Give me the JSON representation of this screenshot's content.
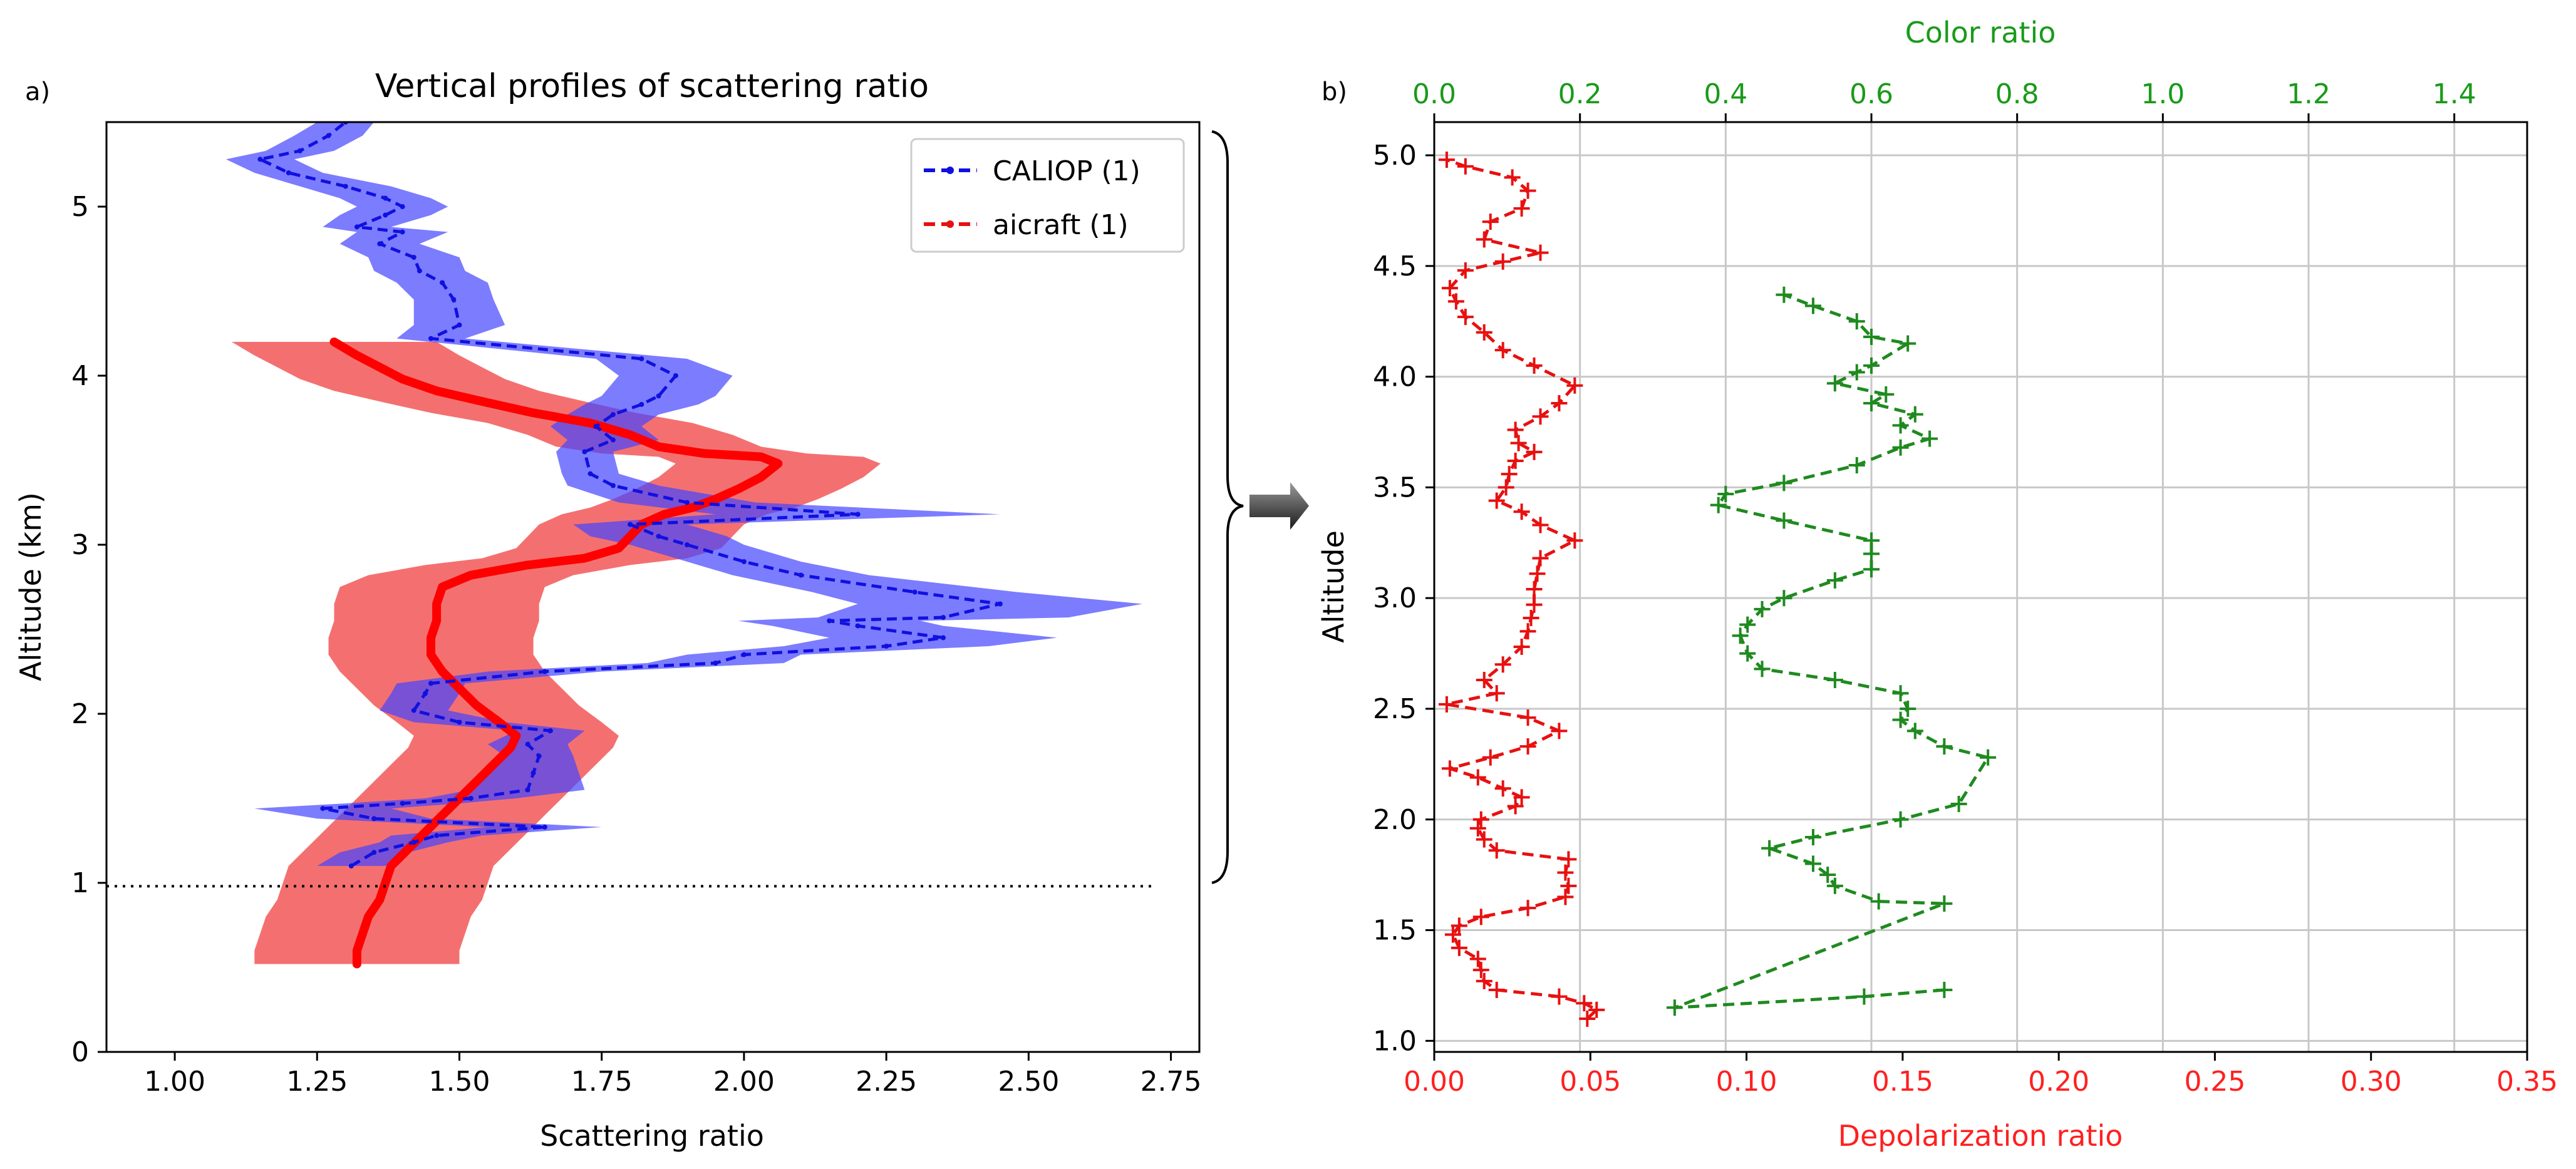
{
  "panel_labels": {
    "a": "a)",
    "b": "b)"
  },
  "arrow": "connector arrow from panel a to panel b",
  "colors": {
    "blue": "#1010e0",
    "red": "#e81010",
    "green": "#1f8a1f",
    "red_axis": "#ff2020",
    "green_axis": "#1a9a1a",
    "blue_band": "#4444ff",
    "red_band": "#f25050",
    "grid": "#c8c8c8"
  },
  "chart_data": [
    {
      "type": "line",
      "title": "Vertical profiles of scattering ratio",
      "xlabel": "Scattering ratio",
      "ylabel": "Altitude (km)",
      "xlim": [
        0.88,
        2.8
      ],
      "ylim": [
        0,
        5.5
      ],
      "xticks": [
        "1.00",
        "1.25",
        "1.50",
        "1.75",
        "2.00",
        "2.25",
        "2.50",
        "2.75"
      ],
      "yticks": [
        "0",
        "1",
        "2",
        "3",
        "4",
        "5"
      ],
      "xtick_values": [
        1.0,
        1.25,
        1.5,
        1.75,
        2.0,
        2.25,
        2.5,
        2.75
      ],
      "ytick_values": [
        0,
        1,
        2,
        3,
        4,
        5
      ],
      "legend": {
        "position": "top-right",
        "entries": [
          "CALIOP (1)",
          "aicraft (1)"
        ]
      },
      "hline": {
        "y": 0.98,
        "x_range": [
          0.88,
          2.72
        ],
        "style": "dotted"
      },
      "series": [
        {
          "name": "CALIOP (1)",
          "style": "dashed",
          "points": [
            [
              1.31,
              1.1
            ],
            [
              1.35,
              1.18
            ],
            [
              1.42,
              1.24
            ],
            [
              1.46,
              1.28
            ],
            [
              1.65,
              1.33
            ],
            [
              1.35,
              1.38
            ],
            [
              1.26,
              1.44
            ],
            [
              1.4,
              1.47
            ],
            [
              1.52,
              1.5
            ],
            [
              1.62,
              1.55
            ],
            [
              1.63,
              1.65
            ],
            [
              1.64,
              1.75
            ],
            [
              1.62,
              1.82
            ],
            [
              1.66,
              1.9
            ],
            [
              1.5,
              1.95
            ],
            [
              1.42,
              2.02
            ],
            [
              1.44,
              2.12
            ],
            [
              1.45,
              2.18
            ],
            [
              1.65,
              2.25
            ],
            [
              1.95,
              2.3
            ],
            [
              2.0,
              2.35
            ],
            [
              2.25,
              2.4
            ],
            [
              2.35,
              2.45
            ],
            [
              2.2,
              2.52
            ],
            [
              2.15,
              2.55
            ],
            [
              2.35,
              2.57
            ],
            [
              2.45,
              2.65
            ],
            [
              2.3,
              2.72
            ],
            [
              2.1,
              2.82
            ],
            [
              2.0,
              2.9
            ],
            [
              1.9,
              3.0
            ],
            [
              1.85,
              3.05
            ],
            [
              1.8,
              3.12
            ],
            [
              2.2,
              3.18
            ],
            [
              1.9,
              3.25
            ],
            [
              1.77,
              3.35
            ],
            [
              1.73,
              3.42
            ],
            [
              1.72,
              3.55
            ],
            [
              1.77,
              3.62
            ],
            [
              1.74,
              3.7
            ],
            [
              1.77,
              3.77
            ],
            [
              1.82,
              3.83
            ],
            [
              1.85,
              3.88
            ],
            [
              1.88,
              4.0
            ],
            [
              1.82,
              4.1
            ],
            [
              1.45,
              4.22
            ],
            [
              1.5,
              4.3
            ],
            [
              1.49,
              4.45
            ],
            [
              1.47,
              4.55
            ],
            [
              1.43,
              4.62
            ],
            [
              1.42,
              4.7
            ],
            [
              1.36,
              4.78
            ],
            [
              1.4,
              4.85
            ],
            [
              1.32,
              4.88
            ],
            [
              1.37,
              4.95
            ],
            [
              1.4,
              5.0
            ],
            [
              1.37,
              5.05
            ],
            [
              1.3,
              5.12
            ],
            [
              1.2,
              5.2
            ],
            [
              1.15,
              5.28
            ],
            [
              1.22,
              5.33
            ],
            [
              1.27,
              5.42
            ],
            [
              1.3,
              5.5
            ]
          ],
          "band_halfwidth": [
            0.06,
            0.06,
            0.06,
            0.08,
            0.1,
            0.1,
            0.12,
            0.1,
            0.08,
            0.1,
            0.08,
            0.06,
            0.07,
            0.06,
            0.08,
            0.06,
            0.06,
            0.06,
            0.1,
            0.12,
            0.1,
            0.18,
            0.2,
            0.15,
            0.16,
            0.22,
            0.25,
            0.18,
            0.12,
            0.1,
            0.1,
            0.12,
            0.1,
            0.25,
            0.12,
            0.08,
            0.05,
            0.05,
            0.08,
            0.08,
            0.08,
            0.1,
            0.1,
            0.1,
            0.08,
            0.06,
            0.08,
            0.07,
            0.08,
            0.08,
            0.08,
            0.07,
            0.08,
            0.06,
            0.08,
            0.08,
            0.08,
            0.08,
            0.06,
            0.06,
            0.06,
            0.06,
            0.05
          ]
        },
        {
          "name": "aicraft (1)",
          "style": "solid-thick",
          "points": [
            [
              1.32,
              0.52
            ],
            [
              1.32,
              0.6
            ],
            [
              1.33,
              0.7
            ],
            [
              1.34,
              0.8
            ],
            [
              1.36,
              0.9
            ],
            [
              1.37,
              1.0
            ],
            [
              1.38,
              1.1
            ],
            [
              1.41,
              1.2
            ],
            [
              1.44,
              1.3
            ],
            [
              1.47,
              1.4
            ],
            [
              1.5,
              1.5
            ],
            [
              1.53,
              1.6
            ],
            [
              1.56,
              1.7
            ],
            [
              1.59,
              1.8
            ],
            [
              1.6,
              1.87
            ],
            [
              1.57,
              1.95
            ],
            [
              1.53,
              2.05
            ],
            [
              1.5,
              2.15
            ],
            [
              1.47,
              2.25
            ],
            [
              1.45,
              2.35
            ],
            [
              1.45,
              2.45
            ],
            [
              1.46,
              2.55
            ],
            [
              1.46,
              2.65
            ],
            [
              1.47,
              2.75
            ],
            [
              1.52,
              2.82
            ],
            [
              1.62,
              2.88
            ],
            [
              1.72,
              2.92
            ],
            [
              1.78,
              2.98
            ],
            [
              1.8,
              3.05
            ],
            [
              1.82,
              3.12
            ],
            [
              1.86,
              3.18
            ],
            [
              1.91,
              3.22
            ],
            [
              1.95,
              3.27
            ],
            [
              1.99,
              3.33
            ],
            [
              2.03,
              3.4
            ],
            [
              2.06,
              3.48
            ],
            [
              2.03,
              3.52
            ],
            [
              1.93,
              3.54
            ],
            [
              1.85,
              3.58
            ],
            [
              1.8,
              3.65
            ],
            [
              1.73,
              3.72
            ],
            [
              1.63,
              3.78
            ],
            [
              1.55,
              3.84
            ],
            [
              1.46,
              3.91
            ],
            [
              1.4,
              3.98
            ],
            [
              1.36,
              4.05
            ],
            [
              1.32,
              4.12
            ],
            [
              1.28,
              4.2
            ]
          ],
          "band_halfwidth": 0.18
        }
      ]
    },
    {
      "type": "line",
      "xlabel": "Depolarization ratio",
      "x2label": "Color ratio",
      "ylabel": "Altitude",
      "xlim": [
        0.0,
        0.35
      ],
      "x2lim": [
        0.0,
        1.5
      ],
      "ylim": [
        0.95,
        5.15
      ],
      "xticks": [
        "0.00",
        "0.05",
        "0.10",
        "0.15",
        "0.20",
        "0.25",
        "0.30",
        "0.35"
      ],
      "xtick_values": [
        0,
        0.05,
        0.1,
        0.15,
        0.2,
        0.25,
        0.3,
        0.35
      ],
      "x2ticks": [
        "0.0",
        "0.2",
        "0.4",
        "0.6",
        "0.8",
        "1.0",
        "1.2",
        "1.4"
      ],
      "x2tick_values": [
        0,
        0.2,
        0.4,
        0.6,
        0.8,
        1.0,
        1.2,
        1.4
      ],
      "yticks": [
        "1.0",
        "1.5",
        "2.0",
        "2.5",
        "3.0",
        "3.5",
        "4.0",
        "4.5",
        "5.0"
      ],
      "ytick_values": [
        1.0,
        1.5,
        2.0,
        2.5,
        3.0,
        3.5,
        4.0,
        4.5,
        5.0
      ],
      "grid": true,
      "series": [
        {
          "name": "Depolarization ratio",
          "axis": "bottom",
          "style": "dashed-plus",
          "points": [
            [
              0.049,
              1.1
            ],
            [
              0.052,
              1.14
            ],
            [
              0.048,
              1.17
            ],
            [
              0.04,
              1.2
            ],
            [
              0.02,
              1.23
            ],
            [
              0.016,
              1.27
            ],
            [
              0.015,
              1.32
            ],
            [
              0.014,
              1.37
            ],
            [
              0.008,
              1.42
            ],
            [
              0.006,
              1.48
            ],
            [
              0.008,
              1.52
            ],
            [
              0.015,
              1.56
            ],
            [
              0.03,
              1.6
            ],
            [
              0.042,
              1.65
            ],
            [
              0.043,
              1.7
            ],
            [
              0.042,
              1.76
            ],
            [
              0.043,
              1.82
            ],
            [
              0.02,
              1.86
            ],
            [
              0.016,
              1.91
            ],
            [
              0.014,
              1.96
            ],
            [
              0.015,
              2.0
            ],
            [
              0.026,
              2.06
            ],
            [
              0.028,
              2.1
            ],
            [
              0.022,
              2.14
            ],
            [
              0.014,
              2.19
            ],
            [
              0.005,
              2.23
            ],
            [
              0.018,
              2.28
            ],
            [
              0.03,
              2.33
            ],
            [
              0.04,
              2.4
            ],
            [
              0.03,
              2.46
            ],
            [
              0.004,
              2.52
            ],
            [
              0.02,
              2.57
            ],
            [
              0.016,
              2.63
            ],
            [
              0.022,
              2.7
            ],
            [
              0.028,
              2.78
            ],
            [
              0.03,
              2.85
            ],
            [
              0.031,
              2.91
            ],
            [
              0.032,
              2.97
            ],
            [
              0.032,
              3.04
            ],
            [
              0.033,
              3.11
            ],
            [
              0.034,
              3.18
            ],
            [
              0.045,
              3.26
            ],
            [
              0.034,
              3.33
            ],
            [
              0.028,
              3.39
            ],
            [
              0.02,
              3.44
            ],
            [
              0.023,
              3.5
            ],
            [
              0.024,
              3.56
            ],
            [
              0.026,
              3.62
            ],
            [
              0.032,
              3.66
            ],
            [
              0.027,
              3.7
            ],
            [
              0.026,
              3.76
            ],
            [
              0.034,
              3.82
            ],
            [
              0.04,
              3.88
            ],
            [
              0.045,
              3.96
            ],
            [
              0.032,
              4.05
            ],
            [
              0.022,
              4.12
            ],
            [
              0.016,
              4.2
            ],
            [
              0.01,
              4.27
            ],
            [
              0.007,
              4.34
            ],
            [
              0.005,
              4.4
            ],
            [
              0.01,
              4.48
            ],
            [
              0.022,
              4.52
            ],
            [
              0.034,
              4.56
            ],
            [
              0.016,
              4.62
            ],
            [
              0.018,
              4.7
            ],
            [
              0.028,
              4.76
            ],
            [
              0.03,
              4.84
            ],
            [
              0.025,
              4.9
            ],
            [
              0.01,
              4.95
            ],
            [
              0.004,
              4.98
            ]
          ]
        },
        {
          "name": "Color ratio",
          "axis": "top",
          "style": "dashed-plus",
          "points": [
            [
              0.7,
              1.23
            ],
            [
              0.59,
              1.2
            ],
            [
              0.33,
              1.15
            ],
            [
              0.7,
              1.62
            ],
            [
              0.61,
              1.63
            ],
            [
              0.55,
              1.7
            ],
            [
              0.54,
              1.75
            ],
            [
              0.52,
              1.8
            ],
            [
              0.46,
              1.87
            ],
            [
              0.52,
              1.92
            ],
            [
              0.64,
              2.0
            ],
            [
              0.72,
              2.07
            ],
            [
              0.76,
              2.28
            ],
            [
              0.7,
              2.33
            ],
            [
              0.66,
              2.4
            ],
            [
              0.64,
              2.45
            ],
            [
              0.65,
              2.5
            ],
            [
              0.64,
              2.57
            ],
            [
              0.55,
              2.63
            ],
            [
              0.45,
              2.68
            ],
            [
              0.43,
              2.75
            ],
            [
              0.42,
              2.83
            ],
            [
              0.43,
              2.88
            ],
            [
              0.45,
              2.95
            ],
            [
              0.48,
              3.0
            ],
            [
              0.55,
              3.08
            ],
            [
              0.6,
              3.13
            ],
            [
              0.6,
              3.2
            ],
            [
              0.6,
              3.26
            ],
            [
              0.48,
              3.35
            ],
            [
              0.39,
              3.42
            ],
            [
              0.4,
              3.47
            ],
            [
              0.48,
              3.52
            ],
            [
              0.58,
              3.6
            ],
            [
              0.64,
              3.68
            ],
            [
              0.68,
              3.72
            ],
            [
              0.64,
              3.78
            ],
            [
              0.66,
              3.83
            ],
            [
              0.6,
              3.88
            ],
            [
              0.62,
              3.92
            ],
            [
              0.55,
              3.97
            ],
            [
              0.58,
              4.02
            ],
            [
              0.6,
              4.05
            ],
            [
              0.65,
              4.15
            ],
            [
              0.6,
              4.18
            ],
            [
              0.58,
              4.25
            ],
            [
              0.52,
              4.32
            ],
            [
              0.48,
              4.37
            ]
          ]
        }
      ]
    }
  ]
}
